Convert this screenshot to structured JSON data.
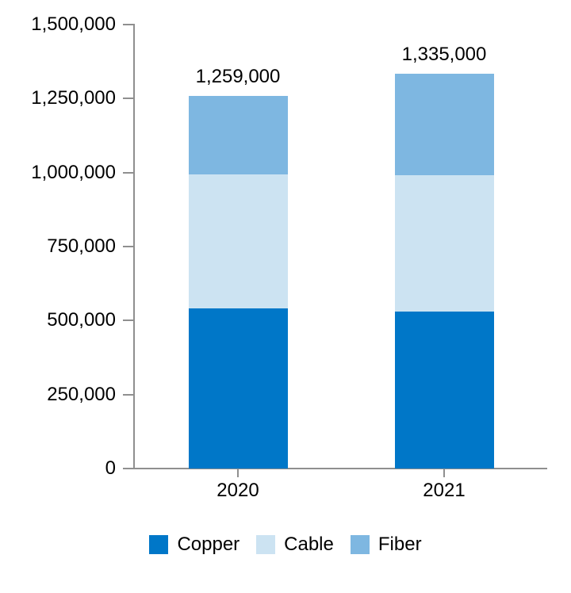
{
  "chart_data": {
    "type": "bar",
    "stacked": true,
    "title": "",
    "xlabel": "",
    "ylabel": "",
    "categories": [
      "2020",
      "2021"
    ],
    "series": [
      {
        "name": "Copper",
        "color": "#0077C8",
        "values": [
          540000,
          530000
        ]
      },
      {
        "name": "Cable",
        "color": "#CCE3F2",
        "values": [
          454000,
          462000
        ]
      },
      {
        "name": "Fiber",
        "color": "#7EB7E1",
        "values": [
          265000,
          343000
        ]
      }
    ],
    "totals": [
      1259000,
      1335000
    ],
    "total_labels": [
      "1,259,000",
      "1,335,000"
    ],
    "ylim": [
      0,
      1500000
    ],
    "yticks": [
      {
        "value": 0,
        "label": "0"
      },
      {
        "value": 250000,
        "label": "250,000"
      },
      {
        "value": 500000,
        "label": "500,000"
      },
      {
        "value": 750000,
        "label": "750,000"
      },
      {
        "value": 1000000,
        "label": "1,000,000"
      },
      {
        "value": 1250000,
        "label": "1,250,000"
      },
      {
        "value": 1500000,
        "label": "1,500,000"
      }
    ],
    "grid": false,
    "legend_position": "bottom",
    "axis_color": "#8F8F8F",
    "text_color": "#000000",
    "background_color": "#FFFFFF"
  }
}
